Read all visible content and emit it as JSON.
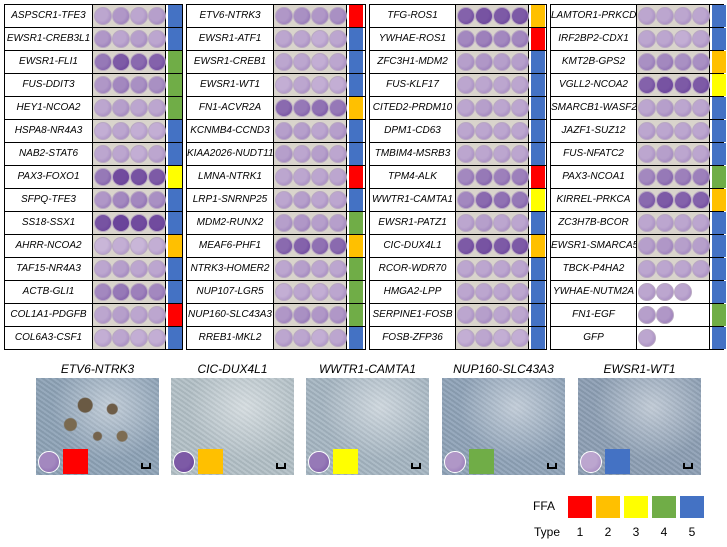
{
  "colors": {
    "1": "#ff0000",
    "2": "#ffc000",
    "3": "#ffff00",
    "4": "#70ad47",
    "5": "#4472c4"
  },
  "panels": [
    {
      "rows": [
        {
          "label": "ASPSCR1-TFE3",
          "type": 5,
          "wells": [
            0.3,
            0.4,
            0.3,
            0.35
          ]
        },
        {
          "label": "EWSR1-CREB3L1",
          "type": 5,
          "wells": [
            0.4,
            0.3,
            0.35,
            0.3
          ]
        },
        {
          "label": "EWSR1-FLI1",
          "type": 4,
          "wells": [
            0.6,
            0.8,
            0.7,
            0.75
          ]
        },
        {
          "label": "FUS-DDIT3",
          "type": 4,
          "wells": [
            0.4,
            0.5,
            0.45,
            0.45
          ]
        },
        {
          "label": "HEY1-NCOA2",
          "type": 4,
          "wells": [
            0.3,
            0.35,
            0.3,
            0.3
          ]
        },
        {
          "label": "HSPA8-NR4A3",
          "type": 5,
          "wells": [
            0.25,
            0.3,
            0.25,
            0.25
          ]
        },
        {
          "label": "NAB2-STAT6",
          "type": 5,
          "wells": [
            0.3,
            0.3,
            0.25,
            0.3
          ]
        },
        {
          "label": "PAX3-FOXO1",
          "type": 3,
          "wells": [
            0.6,
            0.9,
            0.85,
            0.8
          ]
        },
        {
          "label": "SFPQ-TFE3",
          "type": 5,
          "wells": [
            0.4,
            0.5,
            0.5,
            0.45
          ]
        },
        {
          "label": "SS18-SSX1",
          "type": 5,
          "wells": [
            0.85,
            0.95,
            0.9,
            0.9
          ]
        },
        {
          "label": "AHRR-NCOA2",
          "type": 2,
          "wells": [
            0.2,
            0.25,
            0.2,
            0.25
          ]
        },
        {
          "label": "TAF15-NR4A3",
          "type": 5,
          "wells": [
            0.3,
            0.35,
            0.3,
            0.3
          ]
        },
        {
          "label": "ACTB-GLI1",
          "type": 5,
          "wells": [
            0.5,
            0.6,
            0.55,
            0.5
          ]
        },
        {
          "label": "COL1A1-PDGFB",
          "type": 1,
          "wells": [
            0.3,
            0.35,
            0.3,
            0.3
          ]
        },
        {
          "label": "COL6A3-CSF1",
          "type": 5,
          "wells": [
            0.25,
            0.3,
            0.25,
            0.25
          ]
        }
      ]
    },
    {
      "rows": [
        {
          "label": "ETV6-NTRK3",
          "type": 1,
          "wells": [
            0.4,
            0.45,
            0.4,
            0.45
          ]
        },
        {
          "label": "EWSR1-ATF1",
          "type": 5,
          "wells": [
            0.3,
            0.3,
            0.25,
            0.3
          ]
        },
        {
          "label": "EWSR1-CREB1",
          "type": 5,
          "wells": [
            0.3,
            0.3,
            0.25,
            0.3
          ]
        },
        {
          "label": "EWSR1-WT1",
          "type": 5,
          "wells": [
            0.25,
            0.3,
            0.25,
            0.25
          ]
        },
        {
          "label": "FN1-ACVR2A",
          "type": 2,
          "wells": [
            0.7,
            0.6,
            0.65,
            0.6
          ]
        },
        {
          "label": "KCNMB4-CCND3",
          "type": 5,
          "wells": [
            0.35,
            0.35,
            0.3,
            0.35
          ]
        },
        {
          "label": "KIAA2026-NUDT11",
          "type": 5,
          "wells": [
            0.35,
            0.3,
            0.35,
            0.3
          ]
        },
        {
          "label": "LMNA-NTRK1",
          "type": 1,
          "wells": [
            0.3,
            0.3,
            0.3,
            0.3
          ]
        },
        {
          "label": "LRP1-SNRNP25",
          "type": 5,
          "wells": [
            0.3,
            0.35,
            0.3,
            0.3
          ]
        },
        {
          "label": "MDM2-RUNX2",
          "type": 4,
          "wells": [
            0.35,
            0.4,
            0.35,
            0.35
          ]
        },
        {
          "label": "MEAF6-PHF1",
          "type": 2,
          "wells": [
            0.7,
            0.75,
            0.65,
            0.7
          ]
        },
        {
          "label": "NTRK3-HOMER2",
          "type": 4,
          "wells": [
            0.3,
            0.35,
            0.3,
            0.3
          ]
        },
        {
          "label": "NUP107-LGR5",
          "type": 4,
          "wells": [
            0.25,
            0.3,
            0.25,
            0.3
          ]
        },
        {
          "label": "NUP160-SLC43A3",
          "type": 4,
          "wells": [
            0.4,
            0.45,
            0.4,
            0.4
          ]
        },
        {
          "label": "RREB1-MKL2",
          "type": 5,
          "wells": [
            0.3,
            0.3,
            0.25,
            0.3
          ]
        }
      ]
    },
    {
      "rows": [
        {
          "label": "TFG-ROS1",
          "type": 2,
          "wells": [
            0.75,
            0.85,
            0.8,
            0.8
          ]
        },
        {
          "label": "YWHAE-ROS1",
          "type": 1,
          "wells": [
            0.5,
            0.55,
            0.5,
            0.5
          ]
        },
        {
          "label": "ZFC3H1-MDM2",
          "type": 5,
          "wells": [
            0.35,
            0.4,
            0.35,
            0.35
          ]
        },
        {
          "label": "FUS-KLF17",
          "type": 5,
          "wells": [
            0.3,
            0.3,
            0.3,
            0.3
          ]
        },
        {
          "label": "CITED2-PRDM10",
          "type": 5,
          "wells": [
            0.3,
            0.35,
            0.3,
            0.3
          ]
        },
        {
          "label": "DPM1-CD63",
          "type": 5,
          "wells": [
            0.3,
            0.3,
            0.3,
            0.3
          ]
        },
        {
          "label": "TMBIM4-MSRB3",
          "type": 5,
          "wells": [
            0.3,
            0.3,
            0.3,
            0.3
          ]
        },
        {
          "label": "TPM4-ALK",
          "type": 1,
          "wells": [
            0.5,
            0.6,
            0.55,
            0.55
          ]
        },
        {
          "label": "WWTR1-CAMTA1",
          "type": 3,
          "wells": [
            0.5,
            0.7,
            0.65,
            0.6
          ]
        },
        {
          "label": "EWSR1-PATZ1",
          "type": 5,
          "wells": [
            0.3,
            0.35,
            0.3,
            0.3
          ]
        },
        {
          "label": "CIC-DUX4L1",
          "type": 2,
          "wells": [
            0.8,
            0.85,
            0.8,
            0.8
          ]
        },
        {
          "label": "RCOR-WDR70",
          "type": 5,
          "wells": [
            0.3,
            0.3,
            0.3,
            0.3
          ]
        },
        {
          "label": "HMGA2-LPP",
          "type": 5,
          "wells": [
            0.3,
            0.3,
            0.3,
            0.3
          ]
        },
        {
          "label": "SERPINE1-FOSB",
          "type": 5,
          "wells": [
            0.3,
            0.35,
            0.3,
            0.3
          ]
        },
        {
          "label": "FOSB-ZFP36",
          "type": 5,
          "wells": [
            0.25,
            0.3,
            0.25,
            0.25
          ]
        }
      ]
    },
    {
      "rows": [
        {
          "label": "LAMTOR1-PRKCD",
          "type": 5,
          "wells": [
            0.3,
            0.3,
            0.3,
            0.3
          ]
        },
        {
          "label": "IRF2BP2-CDX1",
          "type": 5,
          "wells": [
            0.3,
            0.3,
            0.25,
            0.3
          ]
        },
        {
          "label": "KMT2B-GPS2",
          "type": 2,
          "wells": [
            0.45,
            0.5,
            0.45,
            0.45
          ]
        },
        {
          "label": "VGLL2-NCOA2",
          "type": 3,
          "wells": [
            0.75,
            0.85,
            0.8,
            0.8
          ]
        },
        {
          "label": "SMARCB1-WASF2",
          "type": 5,
          "wells": [
            0.3,
            0.35,
            0.3,
            0.3
          ]
        },
        {
          "label": "JAZF1-SUZ12",
          "type": 5,
          "wells": [
            0.3,
            0.3,
            0.3,
            0.3
          ]
        },
        {
          "label": "FUS-NFATC2",
          "type": 5,
          "wells": [
            0.3,
            0.35,
            0.3,
            0.3
          ]
        },
        {
          "label": "PAX3-NCOA1",
          "type": 4,
          "wells": [
            0.5,
            0.6,
            0.55,
            0.55
          ]
        },
        {
          "label": "KIRREL-PRKCA",
          "type": 2,
          "wells": [
            0.7,
            0.8,
            0.75,
            0.75
          ]
        },
        {
          "label": "ZC3H7B-BCOR",
          "type": 5,
          "wells": [
            0.3,
            0.3,
            0.3,
            0.3
          ]
        },
        {
          "label": "EWSR1-SMARCA5",
          "type": 5,
          "wells": [
            0.35,
            0.4,
            0.35,
            0.35
          ]
        },
        {
          "label": "TBCK-P4HA2",
          "type": 5,
          "wells": [
            0.3,
            0.3,
            0.3,
            0.3
          ]
        },
        {
          "label": "YWHAE-NUTM2A",
          "type": 5,
          "wells": [
            0.3,
            0.3,
            0.3
          ]
        },
        {
          "label": "FN1-EGF",
          "type": 4,
          "wells": [
            0.35,
            0.4
          ]
        },
        {
          "label": "GFP",
          "type": 5,
          "wells": [
            0.3
          ]
        }
      ]
    }
  ],
  "photos": [
    {
      "title": "ETV6-NTRK3",
      "type": 1,
      "bg": "#8ea3b7",
      "inset": 0.5
    },
    {
      "title": "CIC-DUX4L1",
      "type": 2,
      "bg": "#b3c0c7",
      "inset": 0.8
    },
    {
      "title": "WWTR1-CAMTA1",
      "type": 3,
      "bg": "#a6b6c2",
      "inset": 0.6
    },
    {
      "title": "NUP160-SLC43A3",
      "type": 4,
      "bg": "#8fa3b8",
      "inset": 0.4
    },
    {
      "title": "EWSR1-WT1",
      "type": 5,
      "bg": "#8d9fb4",
      "inset": 0.3
    }
  ],
  "legend": {
    "title": "FFA",
    "type_label": "Type",
    "values": [
      "1",
      "2",
      "3",
      "4",
      "5"
    ]
  }
}
